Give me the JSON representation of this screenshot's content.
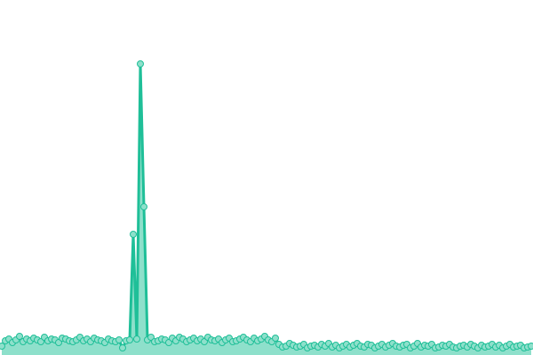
{
  "chart_data": {
    "type": "area",
    "title": "",
    "xlabel": "",
    "ylabel": "",
    "grid": false,
    "ylim": [
      0,
      400
    ],
    "xlim": [
      0,
      149
    ],
    "colors": {
      "line": "#1fbf98",
      "fill": "#8ee0cb",
      "marker_fill": "#8ee0cb",
      "marker_stroke": "#1fbf98"
    },
    "values": [
      10,
      16,
      18,
      14,
      17,
      21,
      15,
      18,
      16,
      19,
      17,
      15,
      20,
      16,
      18,
      17,
      14,
      19,
      18,
      16,
      15,
      17,
      20,
      16,
      18,
      15,
      19,
      17,
      16,
      14,
      18,
      16,
      15,
      17,
      8,
      16,
      17,
      136,
      18,
      328,
      167,
      17,
      20,
      15,
      16,
      18,
      17,
      14,
      19,
      16,
      20,
      18,
      15,
      17,
      19,
      16,
      18,
      15,
      20,
      17,
      16,
      18,
      14,
      17,
      19,
      15,
      16,
      18,
      20,
      17,
      15,
      19,
      16,
      18,
      21,
      17,
      15,
      19,
      12,
      9,
      10,
      13,
      11,
      9,
      10,
      12,
      8,
      10,
      11,
      9,
      12,
      10,
      13,
      9,
      11,
      8,
      10,
      12,
      9,
      11,
      13,
      10,
      9,
      12,
      11,
      8,
      10,
      12,
      9,
      11,
      13,
      10,
      9,
      11,
      12,
      8,
      10,
      13,
      9,
      11,
      10,
      12,
      8,
      9,
      11,
      10,
      12,
      9,
      8,
      10,
      11,
      9,
      12,
      10,
      8,
      11,
      9,
      10,
      12,
      9,
      11,
      8,
      10,
      12,
      9,
      10,
      11,
      8,
      9,
      10
    ]
  }
}
